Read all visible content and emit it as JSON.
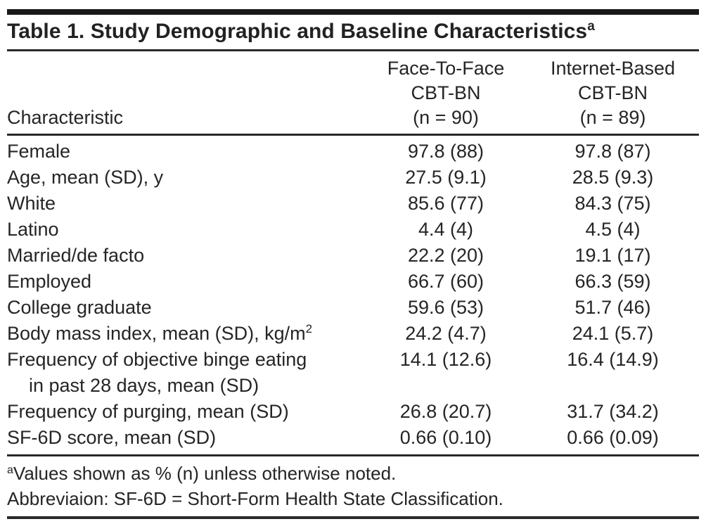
{
  "colors": {
    "background": "#ffffff",
    "text": "#272425",
    "rule": "#2b282a",
    "top_bar": "#1a1718"
  },
  "table": {
    "title": "Table 1. Study Demographic and Baseline Characteristics",
    "title_superscript": "a",
    "header": {
      "characteristic": "Characteristic",
      "col1": {
        "line1": "Face-To-Face",
        "line2": "CBT-BN",
        "line3": "(n = 90)"
      },
      "col2": {
        "line1": "Internet-Based",
        "line2": "CBT-BN",
        "line3": "(n = 89)"
      }
    },
    "rows": [
      {
        "label": "Female",
        "col1": "97.8 (88)",
        "col2": "97.8 (87)"
      },
      {
        "label": "Age, mean (SD), y",
        "col1": "27.5 (9.1)",
        "col2": "28.5 (9.3)"
      },
      {
        "label": "White",
        "col1": "85.6 (77)",
        "col2": "84.3 (75)"
      },
      {
        "label": "Latino",
        "col1": "4.4 (4)",
        "col2": "4.5 (4)"
      },
      {
        "label": "Married/de facto",
        "col1": "22.2 (20)",
        "col2": "19.1 (17)"
      },
      {
        "label": "Employed",
        "col1": "66.7 (60)",
        "col2": "66.3 (59)"
      },
      {
        "label": "College graduate",
        "col1": "59.6 (53)",
        "col2": "51.7 (46)"
      },
      {
        "label": "Body mass index, mean (SD), kg/m",
        "label_superscript": "2",
        "col1": "24.2 (4.7)",
        "col2": "24.1 (5.7)"
      },
      {
        "label": "Frequency of objective binge eating",
        "label_line2": "in past 28 days, mean (SD)",
        "col1": "14.1 (12.6)",
        "col2": "16.4 (14.9)"
      },
      {
        "label": "Frequency of purging, mean (SD)",
        "col1": "26.8 (20.7)",
        "col2": "31.7 (34.2)"
      },
      {
        "label": "SF-6D score, mean (SD)",
        "col1": "0.66 (0.10)",
        "col2": "0.66 (0.09)"
      }
    ],
    "footnotes": [
      {
        "superscript": "a",
        "text": "Values shown as % (n) unless otherwise noted."
      },
      {
        "superscript": "",
        "text": "Abbreviaion: SF-6D = Short-Form Health State Classification."
      }
    ]
  }
}
